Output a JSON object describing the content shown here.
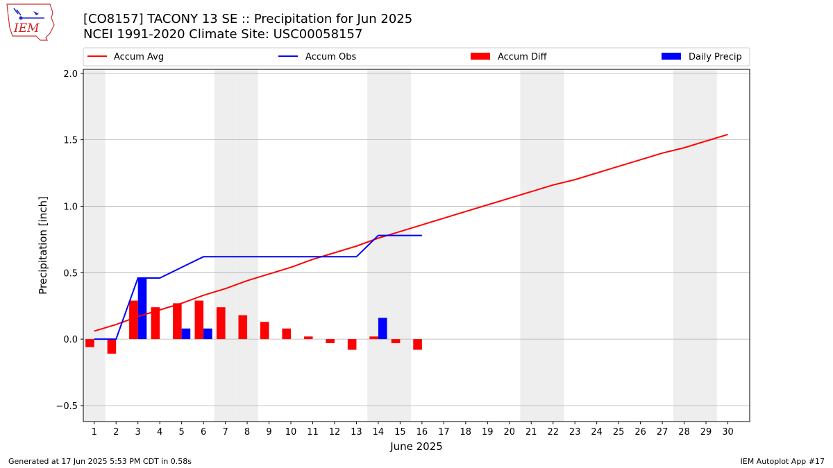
{
  "header": {
    "title_line1": "[CO8157] TACONY 13 SE :: Precipitation for Jun 2025",
    "title_line2": "NCEI 1991-2020 Climate Site: USC00058157"
  },
  "logo": {
    "text": "IEM"
  },
  "footer": {
    "left": "Generated at 17 Jun 2025 5:53 PM CDT in 0.58s",
    "right": "IEM Autoplot App #17"
  },
  "colors": {
    "avg": "#ff0000",
    "obs": "#0000ff",
    "diff": "#ff0000",
    "daily": "#0000ff",
    "weekend": "#eeeeee",
    "grid": "#b0b0b0"
  },
  "chart_data": {
    "type": "bar",
    "title": "[CO8157] TACONY 13 SE :: Precipitation for Jun 2025",
    "subtitle": "NCEI 1991-2020 Climate Site: USC00058157",
    "xlabel": "June 2025",
    "ylabel": "Precipitation [inch]",
    "ylim": [
      -0.62,
      2.03
    ],
    "yticks": [
      -0.5,
      0.0,
      0.5,
      1.0,
      1.5,
      2.0
    ],
    "ytick_labels": [
      "−0.5",
      "0.0",
      "0.5",
      "1.0",
      "1.5",
      "2.0"
    ],
    "xlim": [
      0.5,
      31.0
    ],
    "x": [
      1,
      2,
      3,
      4,
      5,
      6,
      7,
      8,
      9,
      10,
      11,
      12,
      13,
      14,
      15,
      16,
      17,
      18,
      19,
      20,
      21,
      22,
      23,
      24,
      25,
      26,
      27,
      28,
      29,
      30
    ],
    "x_labels": [
      "1",
      "2",
      "3",
      "4",
      "5",
      "6",
      "7",
      "8",
      "9",
      "10",
      "11",
      "12",
      "13",
      "14",
      "15",
      "16",
      "17",
      "18",
      "19",
      "20",
      "21",
      "22",
      "23",
      "24",
      "25",
      "26",
      "27",
      "28",
      "29",
      "30"
    ],
    "grid": "horizontal",
    "legend_placement": "top, above plot",
    "weekend_days": [
      1,
      7,
      8,
      14,
      15,
      21,
      22,
      28,
      29
    ],
    "series": [
      {
        "name": "Accum Avg",
        "kind": "line",
        "x": [
          1,
          2,
          3,
          4,
          5,
          6,
          7,
          8,
          9,
          10,
          11,
          12,
          13,
          14,
          15,
          16,
          17,
          18,
          19,
          20,
          21,
          22,
          23,
          24,
          25,
          26,
          27,
          28,
          29,
          30
        ],
        "values": [
          0.06,
          0.11,
          0.17,
          0.22,
          0.27,
          0.33,
          0.38,
          0.44,
          0.49,
          0.54,
          0.6,
          0.65,
          0.7,
          0.76,
          0.81,
          0.86,
          0.91,
          0.96,
          1.01,
          1.06,
          1.11,
          1.16,
          1.2,
          1.25,
          1.3,
          1.35,
          1.4,
          1.44,
          1.49,
          1.54
        ]
      },
      {
        "name": "Accum Obs",
        "kind": "line",
        "x": [
          1,
          2,
          3,
          4,
          5,
          6,
          7,
          8,
          9,
          10,
          11,
          12,
          13,
          14,
          15,
          16
        ],
        "values": [
          0.0,
          0.0,
          0.46,
          0.46,
          0.54,
          0.62,
          0.62,
          0.62,
          0.62,
          0.62,
          0.62,
          0.62,
          0.62,
          0.78,
          0.78,
          0.78
        ]
      },
      {
        "name": "Accum Diff",
        "kind": "bar",
        "x": [
          1,
          2,
          3,
          4,
          5,
          6,
          7,
          8,
          9,
          10,
          11,
          12,
          13,
          14,
          15,
          16
        ],
        "values": [
          -0.06,
          -0.11,
          0.29,
          0.24,
          0.27,
          0.29,
          0.24,
          0.18,
          0.13,
          0.08,
          0.02,
          -0.03,
          -0.08,
          0.02,
          -0.03,
          -0.08
        ]
      },
      {
        "name": "Daily Precip",
        "kind": "bar",
        "x": [
          1,
          2,
          3,
          4,
          5,
          6,
          7,
          8,
          9,
          10,
          11,
          12,
          13,
          14,
          15,
          16
        ],
        "values": [
          0,
          0,
          0.46,
          0,
          0.08,
          0.08,
          0,
          0,
          0,
          0,
          0,
          0,
          0,
          0.16,
          0,
          0
        ]
      }
    ]
  }
}
